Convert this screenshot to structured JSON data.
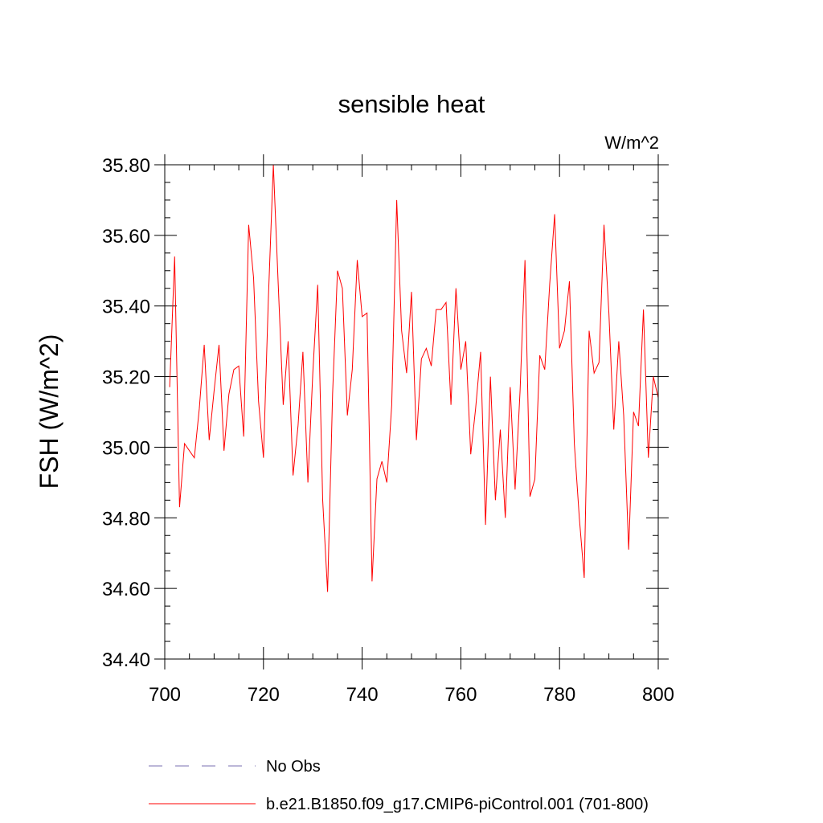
{
  "chart_data": {
    "type": "line",
    "title": "sensible heat",
    "units_label": "W/m^2",
    "ylabel": "FSH  (W/m^2)",
    "xlabel": "",
    "xlim": [
      700,
      800
    ],
    "ylim": [
      34.4,
      35.8
    ],
    "xticks": [
      700,
      720,
      740,
      760,
      780,
      800
    ],
    "xtick_labels": [
      "700",
      "720",
      "740",
      "760",
      "780",
      "800"
    ],
    "yticks": [
      34.4,
      34.6,
      34.8,
      35.0,
      35.2,
      35.4,
      35.6,
      35.8
    ],
    "ytick_labels": [
      "34.40",
      "34.60",
      "34.80",
      "35.00",
      "35.20",
      "35.40",
      "35.60",
      "35.80"
    ],
    "grid": false,
    "legend_position": "bottom",
    "series": [
      {
        "name": "No Obs",
        "color": "#7a6fb0",
        "dash": "dashed",
        "x": [],
        "values": []
      },
      {
        "name": "b.e21.B1850.f09_g17.CMIP6-piControl.001 (701-800)",
        "color": "#ff0000",
        "dash": "solid",
        "x": [
          701,
          702,
          703,
          704,
          705,
          706,
          707,
          708,
          709,
          710,
          711,
          712,
          713,
          714,
          715,
          716,
          717,
          718,
          719,
          720,
          721,
          722,
          723,
          724,
          725,
          726,
          727,
          728,
          729,
          730,
          731,
          732,
          733,
          734,
          735,
          736,
          737,
          738,
          739,
          740,
          741,
          742,
          743,
          744,
          745,
          746,
          747,
          748,
          749,
          750,
          751,
          752,
          753,
          754,
          755,
          756,
          757,
          758,
          759,
          760,
          761,
          762,
          763,
          764,
          765,
          766,
          767,
          768,
          769,
          770,
          771,
          772,
          773,
          774,
          775,
          776,
          777,
          778,
          779,
          780,
          781,
          782,
          783,
          784,
          785,
          786,
          787,
          788,
          789,
          790,
          791,
          792,
          793,
          794,
          795,
          796,
          797,
          798,
          799,
          800
        ],
        "values": [
          35.17,
          35.54,
          34.83,
          35.01,
          34.99,
          34.97,
          35.11,
          35.29,
          35.02,
          35.16,
          35.29,
          34.99,
          35.15,
          35.22,
          35.23,
          35.03,
          35.63,
          35.48,
          35.13,
          34.97,
          35.42,
          35.8,
          35.46,
          35.12,
          35.3,
          34.92,
          35.06,
          35.27,
          34.9,
          35.21,
          35.46,
          34.85,
          34.59,
          35.15,
          35.5,
          35.45,
          35.09,
          35.22,
          35.53,
          35.37,
          35.38,
          34.62,
          34.91,
          34.96,
          34.9,
          35.12,
          35.7,
          35.33,
          35.21,
          35.44,
          35.02,
          35.25,
          35.28,
          35.23,
          35.39,
          35.39,
          35.41,
          35.12,
          35.45,
          35.22,
          35.3,
          34.98,
          35.11,
          35.27,
          34.78,
          35.2,
          34.85,
          35.05,
          34.8,
          35.17,
          34.88,
          35.16,
          35.53,
          34.86,
          34.91,
          35.26,
          35.22,
          35.46,
          35.66,
          35.28,
          35.33,
          35.47,
          35.01,
          34.8,
          34.63,
          35.33,
          35.21,
          35.24,
          35.63,
          35.38,
          35.05,
          35.3,
          35.09,
          34.71,
          35.1,
          35.06,
          35.39,
          34.97,
          35.2,
          35.14
        ]
      }
    ]
  }
}
